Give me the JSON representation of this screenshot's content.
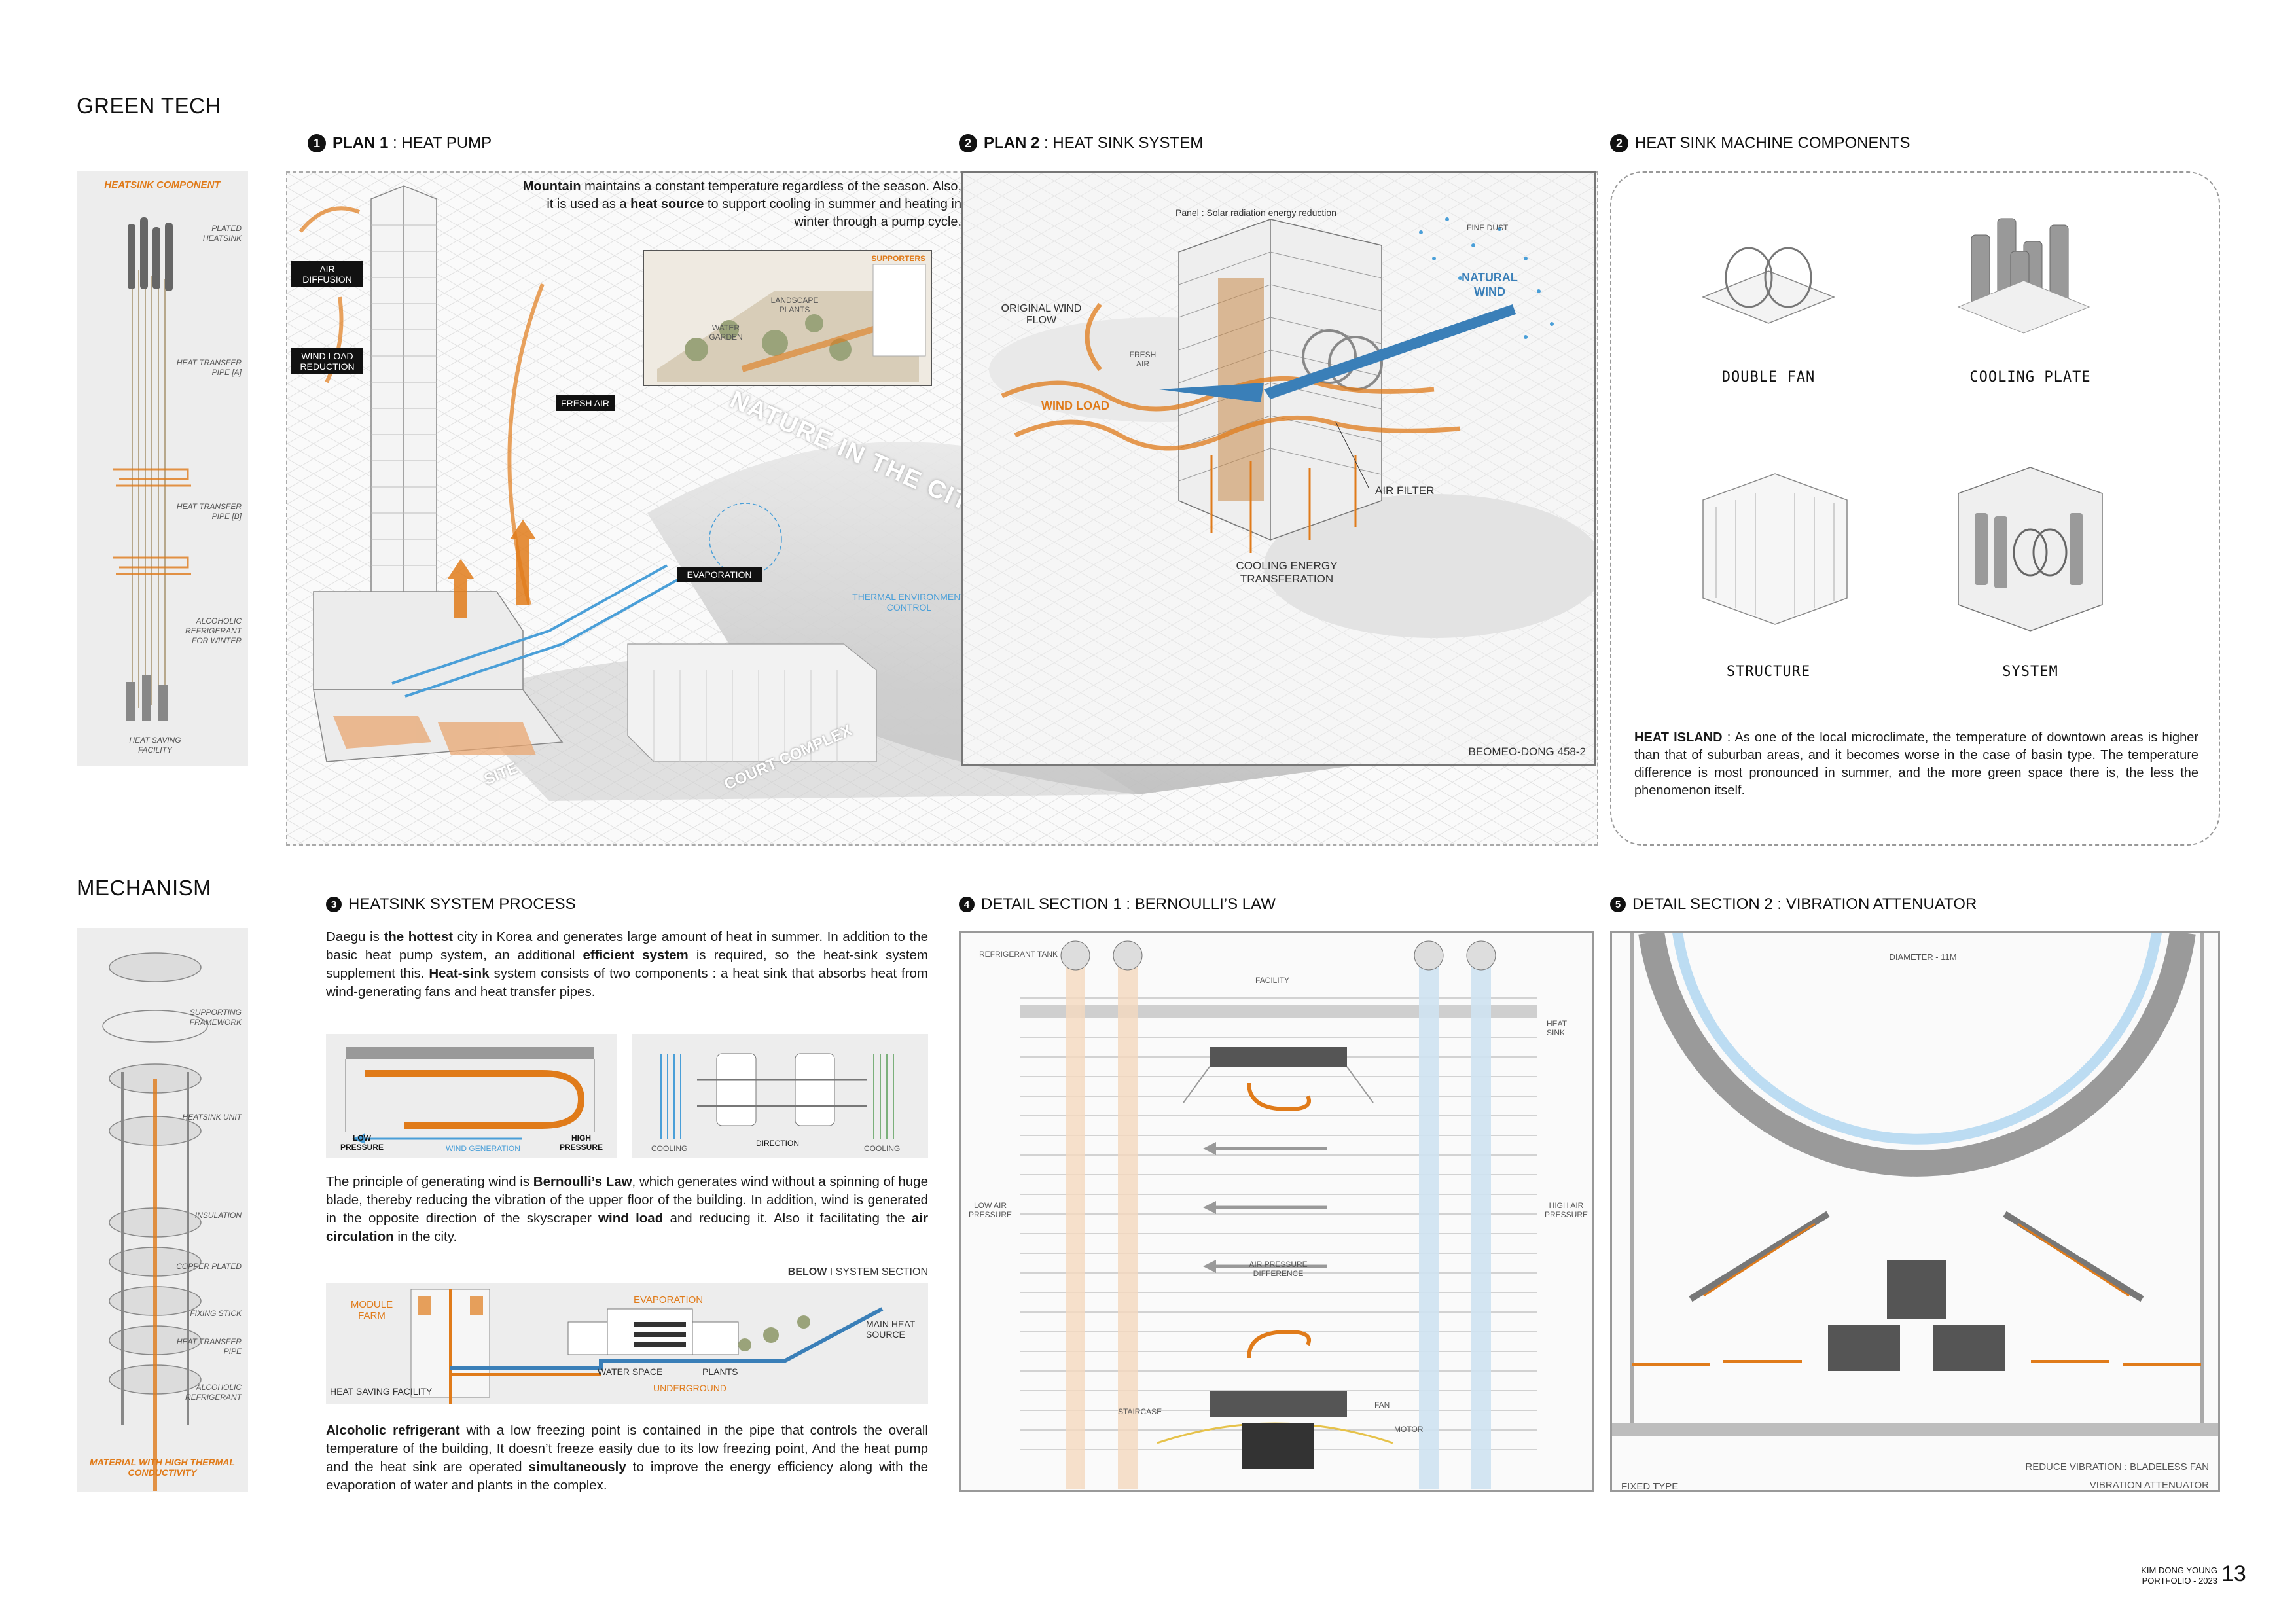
{
  "sections": {
    "green_tech": "GREEN TECH",
    "mechanism": "MECHANISM"
  },
  "plan1": {
    "num": "1",
    "title_bold": "PLAN 1",
    "title_rest": " : HEAT PUMP",
    "p_b1": "Mountain",
    "p_t1": " maintains a constant temperature regardless of the season. Also, it is used as a ",
    "p_b2": "heat source",
    "p_t2": " to support cooling in summer and heating in winter through a pump cycle.",
    "tag_air_diffusion": "AIR DIFFUSION",
    "tag_wind_load": "WIND LOAD REDUCTION",
    "tag_fresh_air": "FRESH AIR",
    "tag_evaporation": "EVAPORATION",
    "thermal": "THERMAL ENVIRONMENT CONTROL",
    "supporters": "SUPPORTERS",
    "landscape": "LANDSCAPE PLANTS",
    "water_garden": "WATER GARDEN",
    "nature": "NATURE IN THE CITY",
    "site": "SITE",
    "court": "COURT COMPLEX"
  },
  "plan2": {
    "num": "2",
    "title_bold": "PLAN 2",
    "title_rest": " : HEAT SINK SYSTEM",
    "panel": "Panel : Solar radiation energy reduction",
    "fine_dust": "FINE DUST",
    "natural_wind": "NATURAL WIND",
    "original_wind": "ORIGINAL WIND FLOW",
    "fresh_air": "FRESH AIR",
    "wind_load": "WIND LOAD",
    "air_filter": "AIR FILTER",
    "cooling_energy": "COOLING ENERGY TRANSFERATION",
    "location": "BEOMEO-DONG 458-2"
  },
  "components": {
    "num": "2",
    "title": "HEAT SINK MACHINE COMPONENTS",
    "items": [
      "DOUBLE FAN",
      "COOLING PLATE",
      "STRUCTURE",
      "SYSTEM"
    ],
    "heat_island_b": "HEAT ISLAND",
    "heat_island_t": " : As one of the local microclimate, the temperature of downtown areas is higher than that of suburban areas, and it becomes worse in the case of basin type. The temperature difference is most pronounced in summer, and the more green space there is, the less the phenomenon itself."
  },
  "heatsink_component": {
    "title": "HEATSINK  COMPONENT",
    "labels": [
      "PLATED HEATSINK",
      "HEAT TRANSFER PIPE [A]",
      "HEAT TRANSFER PIPE [B]",
      "ALCOHOLIC REFRIGERANT FOR WINTER",
      "HEAT SAVING FACILITY"
    ]
  },
  "mechanism_component": {
    "labels": [
      "SUPPORTING FRAMEWORK",
      "HEATSINK UNIT",
      "INSULATION",
      "COPPER PLATED",
      "FIXING STICK",
      "HEAT TRANSFER PIPE",
      "ALCOHOLIC REFRIGERANT"
    ],
    "footer": "MATERIAL WITH HIGH THERMAL CONDUCTIVITY"
  },
  "process": {
    "num": "3",
    "title": "HEATSINK SYSTEM PROCESS",
    "p1": [
      "Daegu is ",
      "the hottest",
      " city in Korea and generates large amount of heat in summer. In addition to the basic heat pump system, an additional ",
      "efficient system",
      " is required, so the heat-sink system supplement this. ",
      "Heat-sink",
      " system consists of two components : a heat sink that absorbs heat from wind-generating fans and heat transfer pipes."
    ],
    "d1_low": "LOW PRESSURE",
    "d1_wind": "WIND GENERATION",
    "d1_high": "HIGH PRESSURE",
    "d2_cooling1": "COOLING",
    "d2_direction": "DIRECTION",
    "d2_cooling2": "COOLING",
    "p2": [
      "The principle of generating wind is ",
      "Bernoulli’s Law",
      ", which generates wind without a spinning of huge blade, thereby reducing the vibration of the upper floor of the building. In addition, wind is generated in the opposite direction of the skyscraper ",
      "wind load",
      " and reducing it. Also it facilitating the ",
      "air circulation",
      " in the city."
    ],
    "below_b": "BELOW",
    "below_t": " I SYSTEM SECTION",
    "s_module": "MODULE FARM",
    "s_evap": "EVAPORATION",
    "s_main": "MAIN HEAT SOURCE",
    "s_water": "WATER SPACE",
    "s_plants": "PLANTS",
    "s_under": "UNDERGROUND",
    "s_hsf": "HEAT SAVING FACILITY",
    "p3": [
      "Alcoholic refrigerant",
      " with a low freezing point is contained in the pipe that controls the overall temperature of the building, It doesn’t freeze easily due to its low freezing point, And the heat pump and the heat sink are operated ",
      "simultaneously",
      " to improve the energy efficiency along with the evaporation of water and plants in the complex."
    ]
  },
  "detail1": {
    "num": "4",
    "title": "DETAIL SECTION 1 : BERNOULLI’S LAW",
    "refrigerant_tank": "REFRIGERANT TANK",
    "facility": "FACILITY",
    "heat_sink": "HEAT SINK",
    "low_air": "LOW AIR PRESSURE",
    "high_air": "HIGH AIR PRESSURE",
    "diff": "AIR PRESSURE DIFFERENCE",
    "staircase": "STAIRCASE",
    "fan": "FAN",
    "motor": "MOTOR"
  },
  "detail2": {
    "num": "5",
    "title": "DETAIL SECTION 2 : VIBRATION ATTENUATOR",
    "diameter": "DIAMETER - 11M",
    "reduce": "REDUCE VIBRATION : BLADELESS FAN",
    "fixed": "FIXED TYPE",
    "attenuator": "VIBRATION ATTENUATOR"
  },
  "footer": {
    "name": "KIM DONG YOUNG",
    "portfolio": "PORTFOLIO - 2023",
    "page": "13"
  },
  "colors": {
    "accent_orange": "#e07b1a",
    "accent_blue": "#4a9fd8",
    "grey_panel": "#ededed"
  }
}
